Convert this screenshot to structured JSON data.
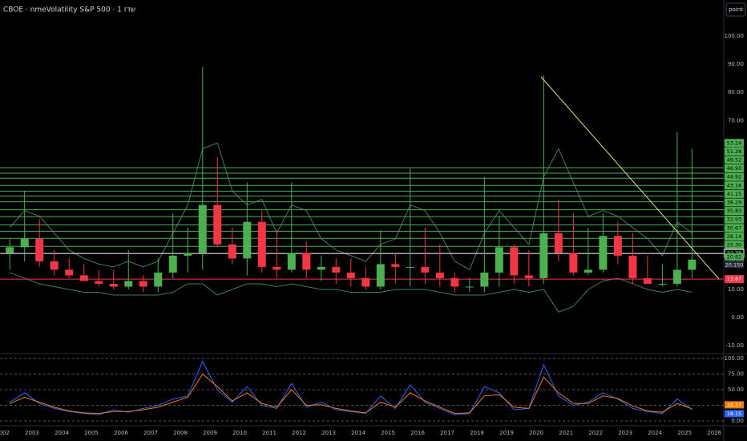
{
  "chart_data": [
    {
      "type": "candlestick",
      "title": "CBOE · nmeVolatility S&P 500 · 1 שדז",
      "button": "point",
      "up_color": "#4caf50",
      "down_color": "#f23645",
      "x": [
        2002.25,
        2002.75,
        2003.25,
        2003.75,
        2004.25,
        2004.75,
        2005.25,
        2005.75,
        2006.25,
        2006.75,
        2007.25,
        2007.75,
        2008.25,
        2008.75,
        2009.25,
        2009.75,
        2010.25,
        2010.75,
        2011.25,
        2011.75,
        2012.25,
        2012.75,
        2013.25,
        2013.75,
        2014.25,
        2014.75,
        2015.25,
        2015.75,
        2016.25,
        2016.75,
        2017.25,
        2017.75,
        2018.25,
        2018.75,
        2019.25,
        2019.75,
        2020.25,
        2020.75,
        2021.25,
        2021.75,
        2022.25,
        2022.75,
        2023.25,
        2023.75,
        2024.25,
        2024.75,
        2025.25
      ],
      "open": [
        23,
        25,
        28,
        20,
        17,
        15,
        13,
        12,
        11,
        13,
        11,
        16,
        22,
        23,
        40,
        26,
        21,
        34,
        18,
        17,
        23,
        17,
        18,
        16,
        14,
        11,
        19,
        18,
        18,
        16,
        14,
        11,
        11,
        16,
        25,
        15,
        14,
        30,
        23,
        16,
        17,
        29,
        22,
        14,
        12,
        12,
        17
      ],
      "high": [
        28,
        45,
        35,
        24,
        21,
        19,
        17,
        17,
        24,
        15,
        21,
        37,
        32,
        89,
        57,
        32,
        48,
        38,
        31,
        48,
        27,
        22,
        21,
        21,
        18,
        31,
        23,
        53,
        32,
        26,
        16,
        14,
        50,
        36,
        26,
        24,
        86,
        42,
        37,
        32,
        37,
        34,
        30,
        22,
        19,
        66,
        60
      ],
      "low": [
        17,
        20,
        18,
        15,
        14,
        13,
        11,
        10,
        10,
        9,
        9,
        14,
        16,
        17,
        25,
        19,
        15,
        16,
        14,
        16,
        14,
        13,
        12,
        11,
        10,
        10,
        12,
        11,
        12,
        11,
        9,
        9,
        9,
        11,
        12,
        11,
        12,
        20,
        15,
        15,
        16,
        19,
        12,
        12,
        11,
        11,
        14
      ],
      "close": [
        25,
        28,
        20,
        17,
        15,
        13,
        12,
        11,
        13,
        11,
        16,
        22,
        23,
        40,
        26,
        21,
        34,
        18,
        17,
        23,
        17,
        18,
        16,
        14,
        11,
        19,
        18,
        18,
        16,
        14,
        11,
        11,
        16,
        25,
        15,
        14,
        30,
        23,
        16,
        17,
        29,
        22,
        14,
        12,
        12,
        17,
        20.62
      ],
      "bands": {
        "color": "#3d7a6a",
        "upper": [
          32,
          38,
          36,
          30,
          24,
          21,
          19,
          18,
          20,
          18,
          20,
          30,
          40,
          60,
          62,
          45,
          40,
          42,
          30,
          40,
          38,
          28,
          24,
          22,
          20,
          26,
          28,
          40,
          38,
          30,
          20,
          17,
          30,
          38,
          32,
          26,
          50,
          60,
          48,
          36,
          38,
          36,
          32,
          28,
          22,
          34,
          30
        ],
        "lower": [
          16,
          14,
          12,
          11,
          10,
          9,
          9,
          8,
          8,
          8,
          8,
          9,
          12,
          12,
          8,
          10,
          12,
          12,
          11,
          12,
          11,
          10,
          10,
          9,
          9,
          9,
          10,
          10,
          10,
          9,
          8,
          8,
          8,
          9,
          10,
          9,
          10,
          2,
          4,
          10,
          13,
          14,
          12,
          10,
          9,
          10,
          9
        ]
      },
      "trendline": {
        "color": "#e6e07a",
        "x": [
          2020.16,
          2026.16
        ],
        "y": [
          85.5,
          13.7
        ]
      },
      "levels": [
        {
          "value": 53.24,
          "label": "53.24",
          "color": "#4caf50"
        },
        {
          "value": 51.28,
          "label": "51.28",
          "color": "#4caf50"
        },
        {
          "value": 49.52,
          "label": "49.52",
          "color": "#4caf50"
        },
        {
          "value": 46.93,
          "label": "46.93",
          "color": "#4caf50"
        },
        {
          "value": 44.92,
          "label": "44.92",
          "color": "#4caf50"
        },
        {
          "value": 43.16,
          "label": "43.16",
          "color": "#4caf50"
        },
        {
          "value": 41.15,
          "label": "41.15",
          "color": "#4caf50"
        },
        {
          "value": 38.29,
          "label": "38.29",
          "color": "#4caf50"
        },
        {
          "value": 35.83,
          "label": "35.83",
          "color": "#4caf50"
        },
        {
          "value": 32.93,
          "label": "32.93",
          "color": "#4caf50"
        },
        {
          "value": 30.67,
          "label": "30.67",
          "color": "#4caf50"
        },
        {
          "value": 28.14,
          "label": "28.14",
          "color": "#4caf50"
        },
        {
          "value": 25.3,
          "label": "25.30",
          "color": "#4caf50"
        },
        {
          "value": 22.79,
          "label": "22.79",
          "color": "#ffffff"
        },
        {
          "value": 13.67,
          "label": "13.67",
          "color": "#f23645"
        }
      ],
      "price_labels": [
        {
          "value": 20.62,
          "label": "20.62",
          "color": "#4caf50"
        },
        {
          "value": 20.15,
          "label": "20.150",
          "color": "#2a2e39"
        }
      ],
      "xlim": [
        2001.92,
        2026.32
      ],
      "xticks": [
        2002,
        2003,
        2004,
        2005,
        2006,
        2007,
        2008,
        2009,
        2010,
        2011,
        2012,
        2013,
        2014,
        2015,
        2016,
        2017,
        2018,
        2019,
        2020,
        2021,
        2022,
        2023,
        2024,
        2025,
        2026
      ],
      "ylim": [
        -12.5,
        112.8
      ],
      "yticks": [
        {
          "value": 100,
          "label": "100.00"
        },
        {
          "value": 90,
          "label": "90.00"
        },
        {
          "value": 80,
          "label": "80.00"
        },
        {
          "value": 70,
          "label": "70.00"
        },
        {
          "value": 60,
          "label": "60.00"
        },
        {
          "value": 50,
          "label": "50.00"
        },
        {
          "value": 40,
          "label": "40.00"
        },
        {
          "value": 30,
          "label": "30.00"
        },
        {
          "value": 20,
          "label": "20.00"
        },
        {
          "value": 10,
          "label": "10.00"
        },
        {
          "value": 0,
          "label": "0.00"
        },
        {
          "value": -10,
          "label": "-10.00"
        }
      ]
    },
    {
      "type": "line",
      "grid": "dashed",
      "ylim": [
        -6.4,
        107.7
      ],
      "yticks": [
        {
          "value": 100,
          "label": "100.00"
        },
        {
          "value": 75,
          "label": "75.00"
        },
        {
          "value": 50,
          "label": "50.00"
        },
        {
          "value": 25,
          "label": "25.00"
        },
        {
          "value": 0,
          "label": "0.00"
        }
      ],
      "series": [
        {
          "color": "#2962ff",
          "values": [
            30,
            45,
            28,
            20,
            15,
            12,
            10,
            18,
            14,
            20,
            25,
            35,
            40,
            95,
            50,
            30,
            55,
            25,
            20,
            60,
            22,
            30,
            18,
            15,
            12,
            40,
            20,
            58,
            30,
            20,
            10,
            12,
            55,
            45,
            18,
            20,
            90,
            40,
            25,
            30,
            45,
            35,
            20,
            15,
            12,
            35,
            18.15
          ]
        },
        {
          "color": "#f57c00",
          "values": [
            28,
            38,
            30,
            22,
            16,
            13,
            12,
            15,
            15,
            18,
            22,
            30,
            38,
            75,
            55,
            32,
            45,
            28,
            22,
            50,
            25,
            26,
            20,
            16,
            13,
            30,
            22,
            45,
            32,
            22,
            12,
            13,
            40,
            42,
            22,
            20,
            70,
            45,
            28,
            28,
            40,
            36,
            24,
            16,
            14,
            28,
            19.37
          ]
        }
      ]
    }
  ]
}
